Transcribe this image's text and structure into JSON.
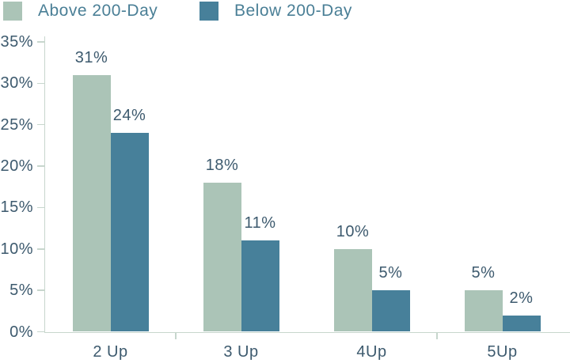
{
  "colors": {
    "above_series": "#abc4b7",
    "below_series": "#47809a",
    "axis_line": "#c7d6cd",
    "label_text": "#3d5a6e",
    "legend_text": "#4a7f96",
    "background": "#ffffff"
  },
  "chart_data": {
    "type": "bar",
    "title": "",
    "categories": [
      "2 Up",
      "3 Up",
      "4Up",
      "5Up"
    ],
    "series": [
      {
        "name": "Above 200-Day",
        "color": "#abc4b7",
        "values": [
          31,
          18,
          10,
          5
        ]
      },
      {
        "name": "Below 200-Day",
        "color": "#47809a",
        "values": [
          24,
          11,
          5,
          2
        ]
      }
    ],
    "value_label_suffix": "%",
    "y_axis": {
      "min": 0,
      "max": 35,
      "tick_step": 5,
      "tick_labels": [
        "0%",
        "5%",
        "10%",
        "15%",
        "20%",
        "25%",
        "30%",
        "35%"
      ]
    },
    "x_axis": {
      "labels": [
        "2 Up",
        "3 Up",
        "4Up",
        "5Up"
      ]
    },
    "legend_position": "top-left",
    "grid": false,
    "data_labels_visible": true
  }
}
